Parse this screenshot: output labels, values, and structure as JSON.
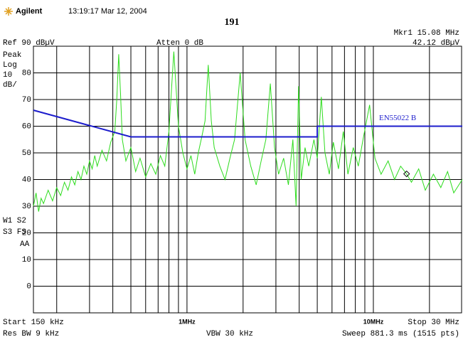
{
  "chart_data": {
    "type": "line",
    "brand": "Agilent",
    "timestamp": "13:19:17  Mar 12, 2004",
    "title": "191",
    "marker_freq": "Mkr1  15.08 MHz",
    "marker_level": "42.12 dBµV",
    "ref_level": "Ref 90 dBµV",
    "atten": "Atten 0 dB",
    "side_labels": [
      "Peak",
      "Log",
      "10",
      "dB/"
    ],
    "trace_labels": [
      "W1 S2",
      "S3 FS",
      "AA"
    ],
    "start_label": "Start 150 kHz",
    "stop_label": "Stop 30 MHz",
    "res_bw": "Res BW 9 kHz",
    "vbw": "VBW 30 kHz",
    "sweep": "Sweep 881.3 ms (1515 pts)",
    "xscale": "log",
    "xlim": [
      0.15,
      30
    ],
    "ylim": [
      -10,
      90
    ],
    "yticks": [
      0,
      10,
      20,
      30,
      40,
      50,
      60,
      70,
      80
    ],
    "xticks": [
      {
        "value": 1,
        "label": "1MHz"
      },
      {
        "value": 10,
        "label": "10MHz"
      }
    ],
    "xminor": [
      0.2,
      0.3,
      0.4,
      0.5,
      0.6,
      0.7,
      0.8,
      0.9,
      2,
      3,
      4,
      5,
      6,
      7,
      8,
      9,
      20
    ],
    "grid": true,
    "marker": {
      "x": 15.08,
      "y": 42.12
    },
    "series": [
      {
        "color": "#2edc1e",
        "x": [
          0.15,
          0.155,
          0.16,
          0.165,
          0.17,
          0.18,
          0.19,
          0.2,
          0.21,
          0.22,
          0.23,
          0.24,
          0.25,
          0.26,
          0.27,
          0.28,
          0.29,
          0.3,
          0.31,
          0.32,
          0.33,
          0.35,
          0.37,
          0.39,
          0.41,
          0.42,
          0.43,
          0.44,
          0.45,
          0.47,
          0.5,
          0.53,
          0.56,
          0.6,
          0.64,
          0.68,
          0.72,
          0.76,
          0.8,
          0.85,
          0.9,
          0.95,
          1.0,
          1.05,
          1.1,
          1.15,
          1.2,
          1.25,
          1.3,
          1.35,
          1.4,
          1.5,
          1.6,
          1.7,
          1.8,
          1.93,
          2.05,
          2.2,
          2.35,
          2.5,
          2.65,
          2.8,
          2.95,
          3.1,
          3.3,
          3.5,
          3.7,
          3.85,
          3.97,
          4.1,
          4.3,
          4.5,
          4.8,
          5.0,
          5.26,
          5.5,
          5.8,
          6.1,
          6.5,
          6.9,
          7.3,
          7.8,
          8.3,
          8.8,
          9.55,
          10.2,
          11,
          12,
          13,
          14,
          15.08,
          16,
          17.5,
          19,
          21,
          23,
          25,
          27,
          30
        ],
        "values": [
          30,
          35,
          28,
          33,
          31,
          36,
          32,
          37,
          34,
          39,
          36,
          41,
          38,
          43,
          40,
          45,
          42,
          47,
          44,
          49,
          45,
          51,
          47,
          54,
          58,
          70,
          87,
          72,
          55,
          47,
          52,
          43,
          48,
          41,
          46,
          42,
          49,
          45,
          58,
          88,
          60,
          50,
          44,
          49,
          42,
          50,
          56,
          62,
          83,
          62,
          52,
          45,
          40,
          48,
          55,
          80,
          55,
          45,
          38,
          47,
          55,
          76,
          52,
          42,
          48,
          38,
          55,
          30,
          75,
          40,
          52,
          45,
          55,
          48,
          71,
          50,
          42,
          54,
          44,
          58,
          42,
          52,
          45,
          55,
          68,
          48,
          42,
          47,
          40,
          45,
          42.12,
          39,
          44,
          36,
          42,
          37,
          43,
          35,
          40
        ]
      },
      {
        "name": "EN55022 B",
        "color": "#1c1ccc",
        "x": [
          0.15,
          0.5,
          5,
          5,
          30
        ],
        "values": [
          66,
          56,
          56,
          60,
          60
        ]
      }
    ]
  }
}
